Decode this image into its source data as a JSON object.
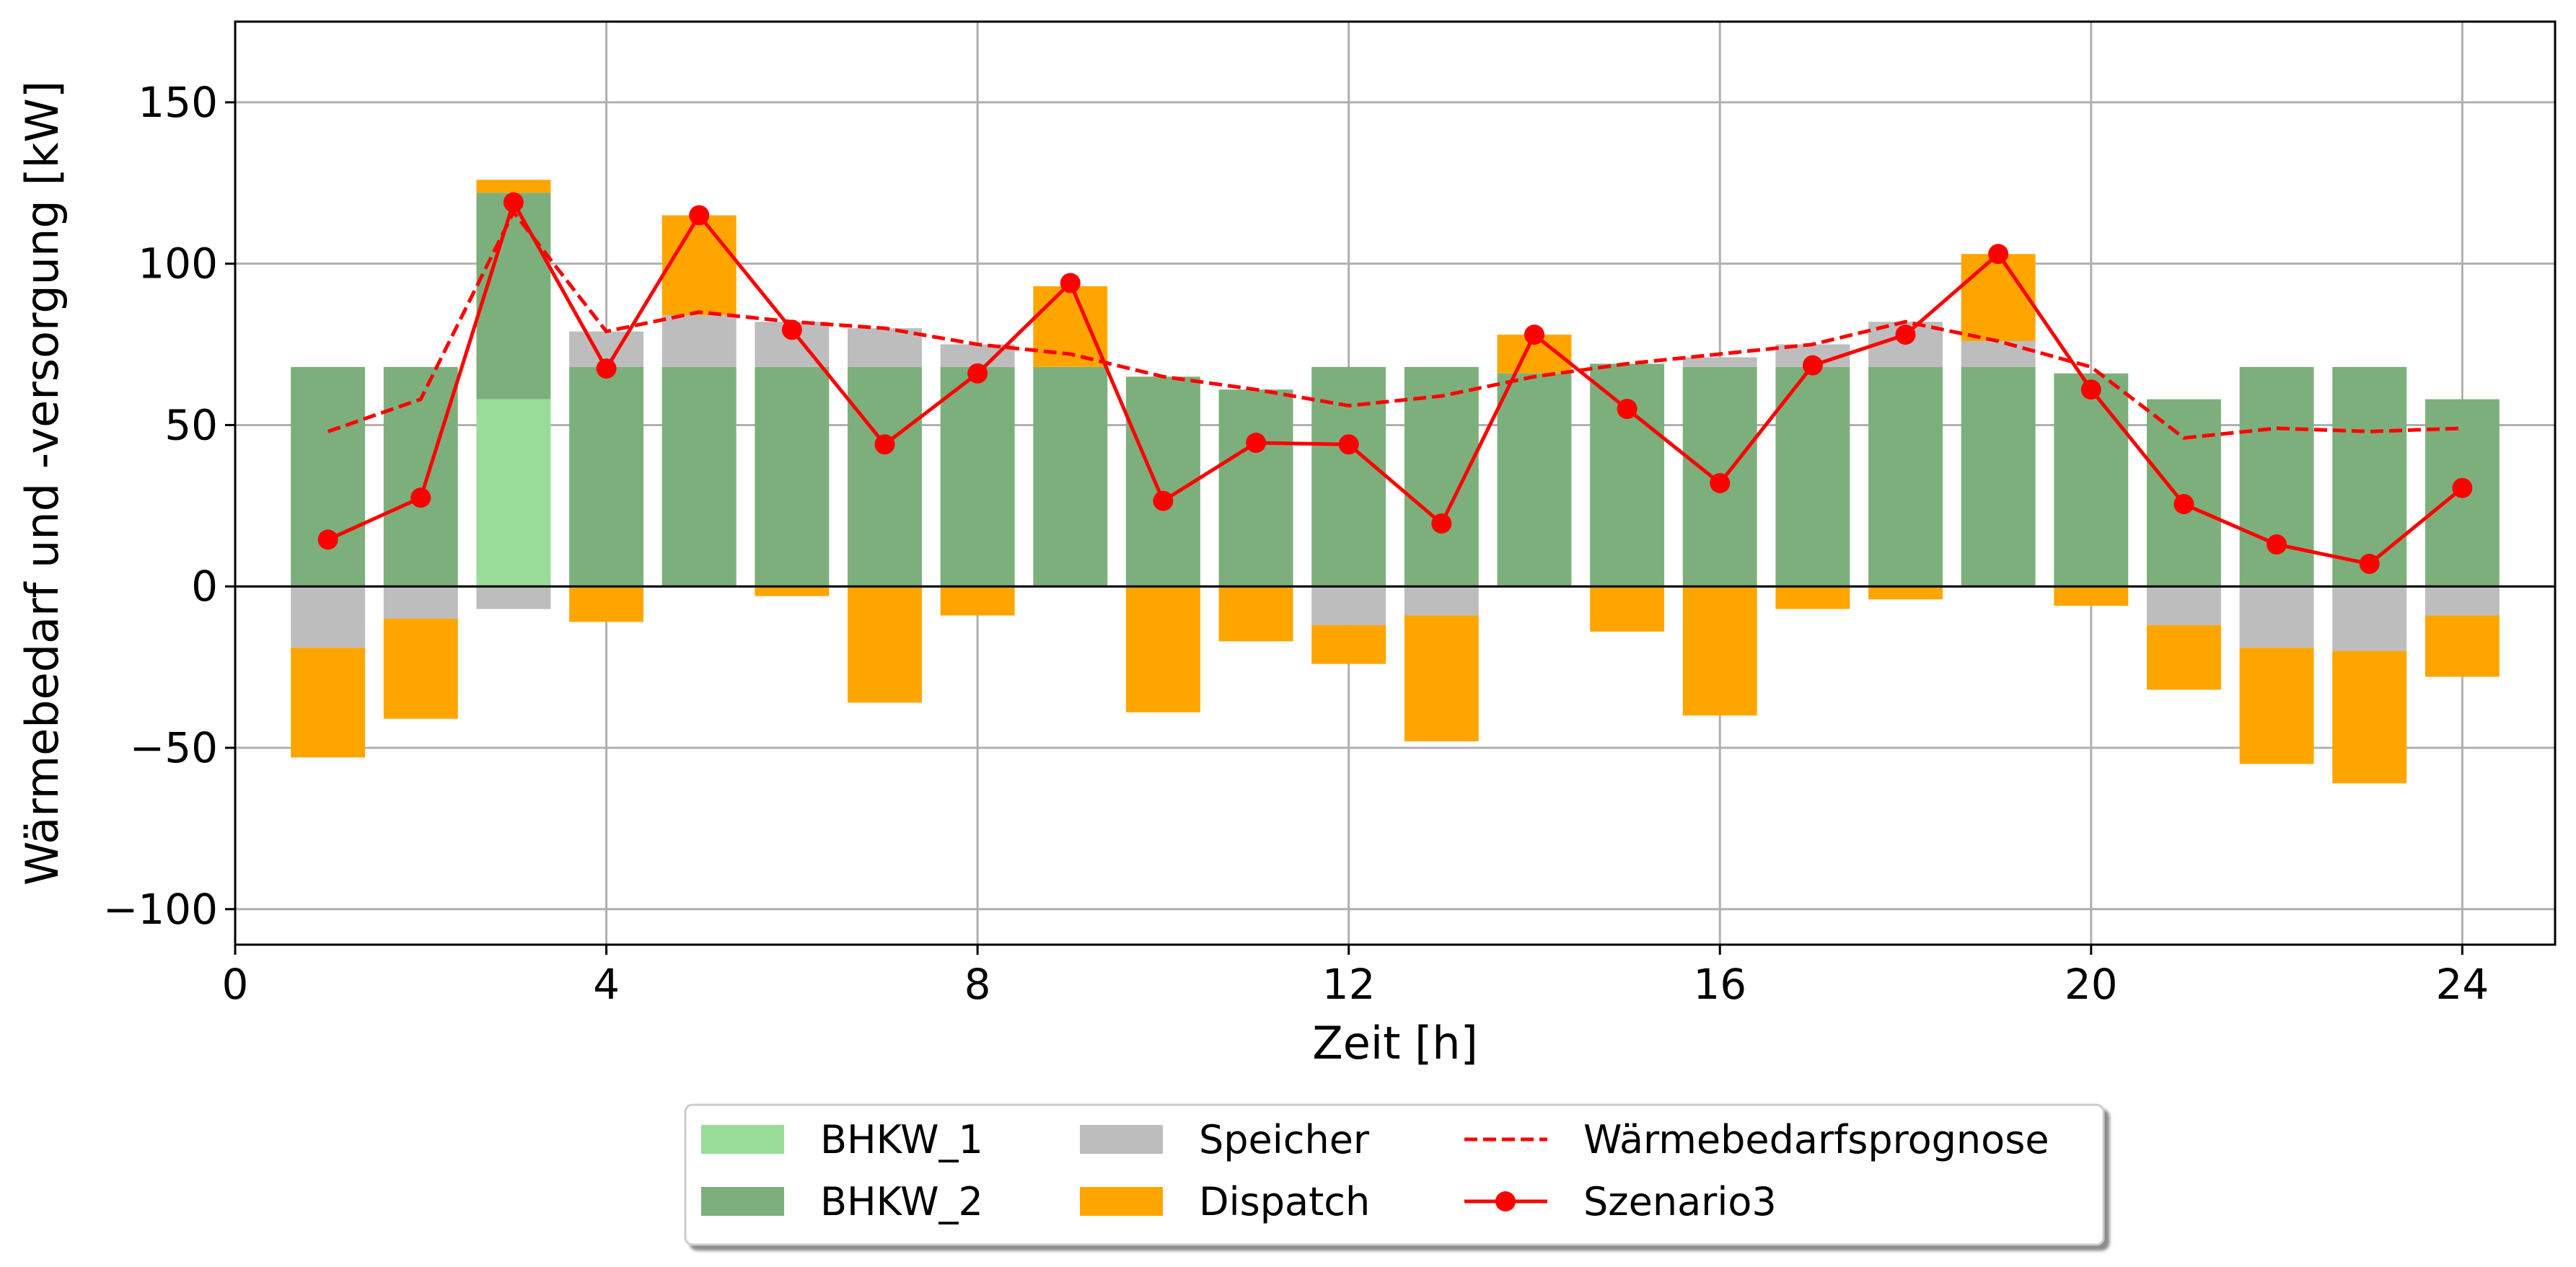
{
  "chart_data": {
    "type": "bar",
    "xlabel": "Zeit [h]",
    "ylabel": "Wärmebedarf und -versorgung [kW]",
    "xlim": [
      0,
      25
    ],
    "ylim": [
      -111,
      175
    ],
    "xticks": [
      0,
      4,
      8,
      12,
      16,
      20,
      24
    ],
    "yticks": [
      -100,
      -50,
      0,
      50,
      100,
      150
    ],
    "xtick_labels": [
      "0",
      "4",
      "8",
      "12",
      "16",
      "20",
      "24"
    ],
    "ytick_labels": [
      "−100",
      "−50",
      "0",
      "50",
      "100",
      "150"
    ],
    "grid": true,
    "legend_position": "bottom-center, below axes",
    "hours": [
      1,
      2,
      3,
      4,
      5,
      6,
      7,
      8,
      9,
      10,
      11,
      12,
      13,
      14,
      15,
      16,
      17,
      18,
      19,
      20,
      21,
      22,
      23,
      24
    ],
    "series": [
      {
        "name": "BHKW_1",
        "color": "#98dc98",
        "values": [
          0,
          0,
          58,
          0,
          0,
          0,
          0,
          0,
          0,
          0,
          0,
          0,
          0,
          0,
          0,
          0,
          0,
          0,
          0,
          0,
          0,
          0,
          0,
          0
        ]
      },
      {
        "name": "BHKW_2",
        "color": "#7daf7d",
        "values": [
          68,
          68,
          64,
          68,
          68,
          68,
          68,
          68,
          68,
          65,
          61,
          68,
          68,
          66,
          69,
          68,
          68,
          68,
          68,
          66,
          58,
          68,
          68,
          58
        ]
      },
      {
        "name": "Speicher",
        "color": "#bdbdbd",
        "values": [
          0,
          0,
          0,
          11,
          16,
          14,
          12,
          7,
          0,
          0,
          0,
          0,
          0,
          0,
          0,
          3,
          7,
          14,
          8,
          0,
          0,
          0,
          0,
          0
        ],
        "neg_values": [
          -19,
          -10,
          -7,
          0,
          0,
          0,
          0,
          0,
          0,
          0,
          0,
          -12,
          -9,
          0,
          0,
          0,
          0,
          0,
          0,
          0,
          -12,
          -19,
          -20,
          -9
        ]
      },
      {
        "name": "Dispatch",
        "color": "#ffa500",
        "values": [
          0,
          0,
          4,
          0,
          31,
          0,
          0,
          0,
          25,
          0,
          0,
          0,
          0,
          12,
          0,
          0,
          0,
          0,
          27,
          0,
          0,
          0,
          0,
          0
        ],
        "neg_values": [
          -34,
          -31,
          0,
          -11,
          0,
          -3,
          -36,
          -9,
          0,
          -39,
          -17,
          -12,
          -39,
          0,
          -14,
          -40,
          -7,
          -4,
          0,
          -6,
          -20,
          -36,
          -41,
          -19
        ]
      },
      {
        "name": "Wärmebedarfsprognose",
        "color": "#ff0000",
        "style": "dashed",
        "values": [
          48,
          58,
          116,
          79,
          85,
          82,
          80,
          75,
          72,
          65,
          61,
          56,
          59,
          65,
          69,
          72,
          75,
          82,
          76,
          68,
          46,
          49,
          48,
          49
        ]
      },
      {
        "name": "Szenario3",
        "color": "#ff0000",
        "style": "line+markers",
        "values": [
          14.5,
          27.5,
          119,
          67.5,
          115,
          79.5,
          44,
          66,
          94,
          26.5,
          44.5,
          44,
          19.5,
          78,
          55,
          32,
          68.5,
          78,
          103,
          61,
          25.5,
          13,
          7,
          30.5
        ]
      }
    ]
  }
}
